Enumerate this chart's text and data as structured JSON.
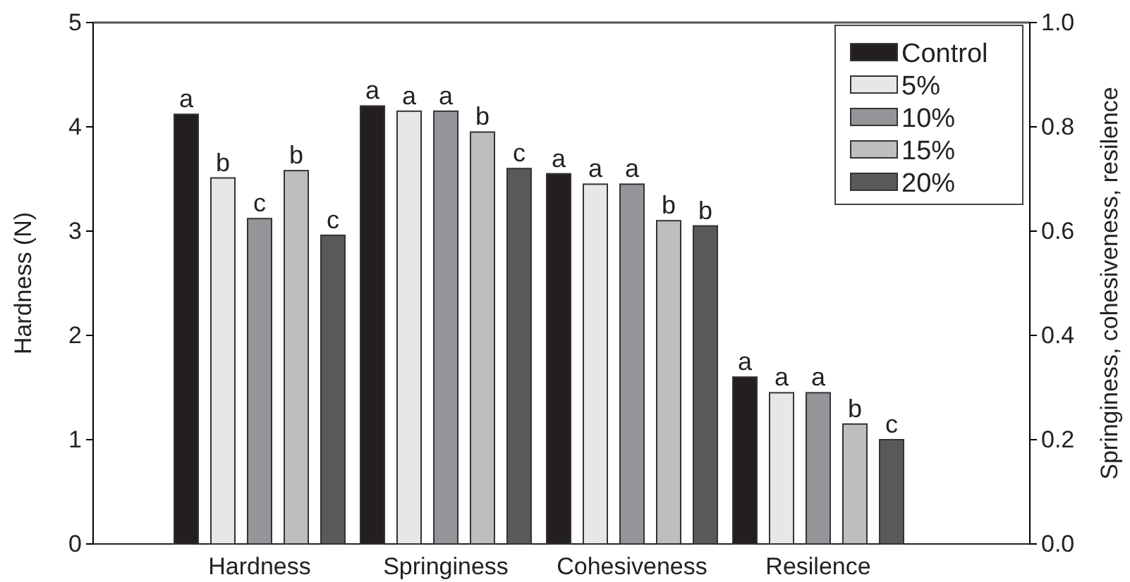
{
  "chart_data": {
    "type": "bar",
    "categories": [
      "Hardness",
      "Springiness",
      "Cohesiveness",
      "Resilence"
    ],
    "ylabel": "Hardness (N)",
    "y2label": "Springiness, cohesiveness, resilence",
    "ylim": [
      0,
      5
    ],
    "yticks": [
      0,
      1,
      2,
      3,
      4,
      5
    ],
    "y2lim": [
      0,
      1
    ],
    "y2ticks": [
      {
        "value": 0,
        "label": "0.0"
      },
      {
        "value": 0.2,
        "label": "0.2"
      },
      {
        "value": 0.4,
        "label": "0.4"
      },
      {
        "value": 0.6,
        "label": "0.6"
      },
      {
        "value": 0.8,
        "label": "0.8"
      },
      {
        "value": 1,
        "label": "1.0"
      }
    ],
    "legend": "top right",
    "grid": false,
    "series": [
      {
        "name": "Control",
        "color": "#231f20",
        "values": [
          4.12,
          null,
          null,
          null
        ],
        "value_labels": [
          "a",
          null,
          null,
          null
        ]
      },
      {
        "name": "5%",
        "color": "#e6e7e8",
        "values": [
          3.51,
          null,
          null,
          null
        ],
        "value_labels": [
          "b",
          null,
          null,
          null
        ]
      },
      {
        "name": "10%",
        "color": "#939598",
        "values": [
          3.12,
          null,
          null,
          null
        ],
        "value_labels": [
          "c",
          null,
          null,
          null
        ]
      },
      {
        "name": "15%",
        "color": "#bcbec0",
        "values": [
          3.58,
          null,
          null,
          null
        ],
        "value_labels": [
          "b",
          null,
          null,
          null
        ]
      },
      {
        "name": "20%",
        "color": "#58595b",
        "values": [
          2.96,
          null,
          null,
          null
        ],
        "value_labels": [
          "c",
          null,
          null,
          null
        ]
      },
      {
        "color": "#231f20",
        "axis": "y2",
        "values": [
          null,
          0.84,
          0.71,
          0.32
        ],
        "value_labels": [
          null,
          "a",
          "a",
          "a"
        ]
      },
      {
        "color": "#e6e7e8",
        "axis": "y2",
        "values": [
          null,
          0.83,
          0.69,
          0.29
        ],
        "value_labels": [
          null,
          "a",
          "a",
          "a"
        ]
      },
      {
        "color": "#939598",
        "axis": "y2",
        "values": [
          null,
          0.83,
          0.69,
          0.29
        ],
        "value_labels": [
          null,
          "a",
          "a",
          "a"
        ]
      },
      {
        "color": "#bcbec0",
        "axis": "y2",
        "values": [
          null,
          0.79,
          0.62,
          0.23
        ],
        "value_labels": [
          null,
          "b",
          "b",
          "b"
        ]
      },
      {
        "color": "#58595b",
        "axis": "y2",
        "values": [
          null,
          0.72,
          0.61,
          0.2
        ],
        "value_labels": [
          null,
          "c",
          "b",
          "c"
        ]
      }
    ]
  }
}
